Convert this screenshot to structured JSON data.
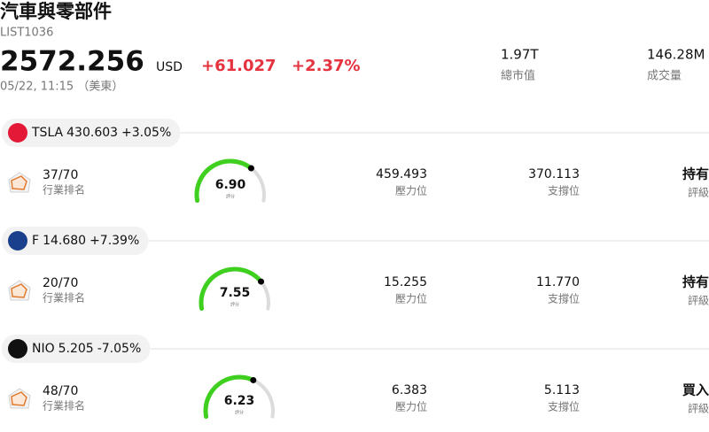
{
  "header": {
    "title": "汽車與零部件",
    "code": "LIST1036",
    "price": "2572.256",
    "currency": "USD",
    "change": "+61.027",
    "change_pct": "+2.37%",
    "time": "05/22, 11:15 （美東）",
    "stats": [
      {
        "value": "1.97T",
        "label": "總市值"
      },
      {
        "value": "146.28M",
        "label": "成交量"
      }
    ]
  },
  "gauge_max": 10,
  "stocks": [
    {
      "ticker": "TSLA",
      "price": "430.603",
      "change": "+3.05%",
      "change_color": "#e5333f",
      "icon_color": "#e31937",
      "rank": "37/70",
      "rank_label": "行業排名",
      "score": {
        "value": 6.9,
        "label": "6.90"
      },
      "score_caption": "評分",
      "resistance": "459.493",
      "resistance_label": "壓力位",
      "support": "370.113",
      "support_label": "支撐位",
      "rating": "持有",
      "rating_color": "#111111",
      "rating_label": "評級"
    },
    {
      "ticker": "F",
      "price": "14.680",
      "change": "+7.39%",
      "change_color": "#e5333f",
      "icon_color": "#1a3f8c",
      "rank": "20/70",
      "rank_label": "行業排名",
      "score": {
        "value": 7.55,
        "label": "7.55"
      },
      "score_caption": "評分",
      "resistance": "15.255",
      "resistance_label": "壓力位",
      "support": "11.770",
      "support_label": "支撐位",
      "rating": "持有",
      "rating_color": "#111111",
      "rating_label": "評級"
    },
    {
      "ticker": "NIO",
      "price": "5.205",
      "change": "-7.05%",
      "change_color": "#0f9d7f",
      "icon_color": "#111111",
      "rank": "48/70",
      "rank_label": "行業排名",
      "score": {
        "value": 6.23,
        "label": "6.23"
      },
      "score_caption": "評分",
      "resistance": "6.383",
      "resistance_label": "壓力位",
      "support": "5.113",
      "support_label": "支撐位",
      "rating": "買入",
      "rating_color": "#0f9d7f",
      "rating_label": "評級"
    }
  ]
}
